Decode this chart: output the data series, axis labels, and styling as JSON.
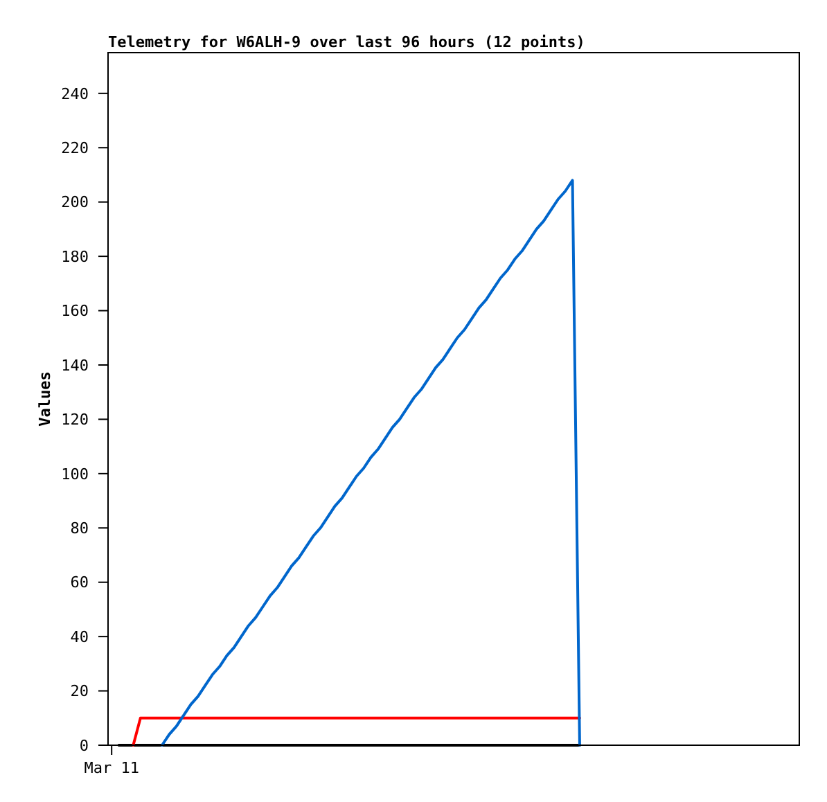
{
  "chart_data": {
    "type": "line",
    "title": "Telemetry for W6ALH-9 over last 96 hours (12 points)",
    "ylabel": "Values",
    "ylim": [
      0,
      255
    ],
    "yticks": [
      0,
      20,
      40,
      60,
      80,
      100,
      120,
      140,
      160,
      180,
      200,
      220,
      240
    ],
    "line_style": "solid",
    "categories": [
      "Mar 11",
      null,
      null,
      null,
      null,
      null,
      null,
      null,
      null,
      null,
      null,
      null,
      null,
      null,
      null,
      null,
      null,
      null,
      null,
      null,
      null,
      null,
      null,
      null,
      null,
      null,
      null,
      null,
      null,
      null,
      null,
      null,
      null,
      null,
      null,
      null,
      null,
      null,
      null,
      null,
      null,
      null,
      null,
      null,
      null,
      null,
      null,
      null,
      null,
      null,
      null,
      null,
      null,
      null,
      null,
      null,
      null,
      null,
      null,
      null,
      null,
      null,
      null,
      null,
      null,
      null,
      null,
      null,
      null,
      null,
      null,
      null,
      null,
      null,
      null,
      null,
      null,
      null,
      null,
      null,
      null,
      null,
      null,
      null,
      null,
      null,
      null,
      null,
      null,
      null,
      null,
      null,
      null,
      null,
      null,
      null
    ],
    "series": [
      {
        "color": "#000000",
        "values": [
          null,
          0,
          0,
          0,
          0,
          0,
          0,
          0,
          0,
          0,
          0,
          0,
          0,
          0,
          0,
          0,
          0,
          0,
          0,
          0,
          0,
          0,
          0,
          0,
          0,
          0,
          0,
          0,
          0,
          0,
          0,
          0,
          0,
          0,
          0,
          0,
          0,
          0,
          0,
          0,
          0,
          0,
          0,
          0,
          0,
          0,
          0,
          0,
          0,
          0,
          0,
          0,
          0,
          0,
          0,
          0,
          0,
          0,
          0,
          0,
          0,
          0,
          0,
          0,
          0,
          0,
          null,
          null,
          null,
          null,
          null,
          null,
          null,
          null,
          null,
          null,
          null,
          null,
          null,
          null,
          null,
          null,
          null,
          null,
          null,
          null,
          null,
          null,
          null,
          null,
          null,
          null,
          null,
          null,
          null,
          null
        ]
      },
      {
        "color": "#ff0000",
        "values": [
          null,
          null,
          null,
          0,
          10,
          10,
          10,
          10,
          10,
          10,
          10,
          10,
          10,
          10,
          10,
          10,
          10,
          10,
          10,
          10,
          10,
          10,
          10,
          10,
          10,
          10,
          10,
          10,
          10,
          10,
          10,
          10,
          10,
          10,
          10,
          10,
          10,
          10,
          10,
          10,
          10,
          10,
          10,
          10,
          10,
          10,
          10,
          10,
          10,
          10,
          10,
          10,
          10,
          10,
          10,
          10,
          10,
          10,
          10,
          10,
          10,
          10,
          10,
          10,
          10,
          10,
          null,
          null,
          null,
          null,
          null,
          null,
          null,
          null,
          null,
          null,
          null,
          null,
          null,
          null,
          null,
          null,
          null,
          null,
          null,
          null,
          null,
          null,
          null,
          null,
          null,
          null,
          null,
          null,
          null,
          null
        ]
      },
      {
        "color": "#0066cc",
        "values": [
          null,
          null,
          null,
          null,
          null,
          null,
          null,
          0,
          4,
          7,
          11,
          15,
          18,
          22,
          26,
          29,
          33,
          36,
          40,
          44,
          47,
          51,
          55,
          58,
          62,
          66,
          69,
          73,
          77,
          80,
          84,
          88,
          91,
          95,
          99,
          102,
          106,
          109,
          113,
          117,
          120,
          124,
          128,
          131,
          135,
          139,
          142,
          146,
          150,
          153,
          157,
          161,
          164,
          168,
          172,
          175,
          179,
          182,
          186,
          190,
          193,
          197,
          201,
          204,
          208,
          0,
          null,
          null,
          null,
          null,
          null,
          null,
          null,
          null,
          null,
          null,
          null,
          null,
          null,
          null,
          null,
          null,
          null,
          null,
          null,
          null,
          null,
          null,
          null,
          null,
          null,
          null,
          null,
          null,
          null,
          null
        ]
      }
    ]
  }
}
